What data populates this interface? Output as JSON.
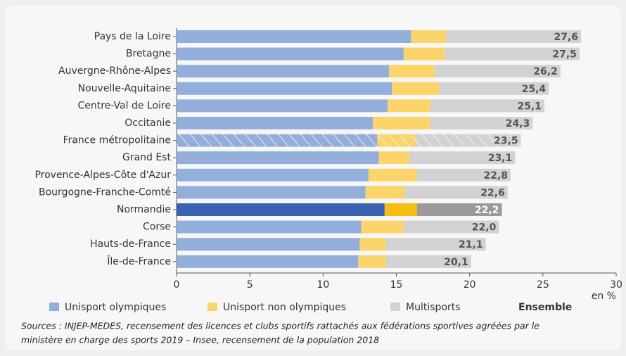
{
  "chart_data": {
    "type": "stacked-bar-horizontal",
    "categories": [
      "Pays de la Loire",
      "Bretagne",
      "Auvergne-Rhône-Alpes",
      "Nouvelle-Aquitaine",
      "Centre-Val de Loire",
      "Occitanie",
      "France métropolitaine",
      "Grand Est",
      "Provence-Alpes-Côte d'Azur",
      "Bourgogne-Franche-Comté",
      "Normandie",
      "Corse",
      "Hauts-de-France",
      "Île-de-France"
    ],
    "series": [
      {
        "name": "Unisport olympiques",
        "color": "#94aedc",
        "highlight_color": "#3a62b0",
        "values": [
          16.0,
          15.5,
          14.5,
          14.7,
          14.4,
          13.4,
          13.7,
          13.8,
          13.1,
          12.9,
          14.2,
          12.6,
          12.5,
          12.4
        ]
      },
      {
        "name": "Unisport non olympiques",
        "color": "#fbd46a",
        "highlight_color": "#f6bd12",
        "values": [
          2.4,
          2.8,
          3.1,
          3.2,
          2.9,
          3.9,
          2.6,
          2.1,
          3.3,
          2.7,
          2.2,
          2.9,
          1.8,
          1.9
        ]
      },
      {
        "name": "Multisports",
        "color": "#d2d2d2",
        "highlight_color": "#9a9a9a",
        "values": [
          9.2,
          9.2,
          8.6,
          7.5,
          7.8,
          7.0,
          7.2,
          7.2,
          6.4,
          7.0,
          5.8,
          6.5,
          6.8,
          5.8
        ]
      }
    ],
    "totals_name": "Ensemble",
    "totals": [
      27.6,
      27.5,
      26.2,
      25.4,
      25.1,
      24.3,
      23.5,
      23.1,
      22.8,
      22.6,
      22.2,
      22.0,
      21.1,
      20.1
    ],
    "total_labels": [
      "27,6",
      "27,5",
      "26,2",
      "25,4",
      "25,1",
      "24,3",
      "23,5",
      "23,1",
      "22,8",
      "22,6",
      "22,2",
      "22,0",
      "21,1",
      "20,1"
    ],
    "hatched_category": "France métropolitaine",
    "highlight_category": "Normandie",
    "xlim": [
      0,
      30
    ],
    "xticks": [
      0,
      5,
      10,
      15,
      20,
      25,
      30
    ],
    "x_unit": "en %",
    "source": [
      "Sources : INJEP-MEDES, recensement des licences et clubs sportifs rattachés aux fédérations sportives agréées par le",
      "ministère en charge des sports 2019 – Insee, recensement de la population 2018"
    ]
  }
}
